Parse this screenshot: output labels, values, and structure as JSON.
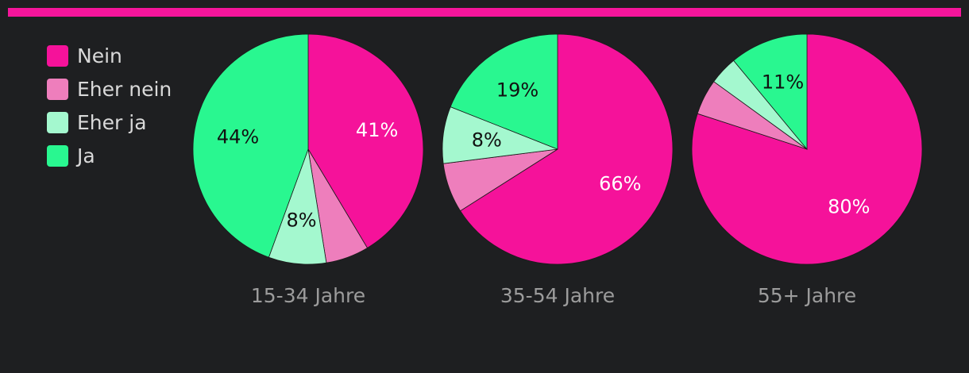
{
  "accent_color": "#f5159b",
  "chart_data": {
    "type": "pie",
    "title": "",
    "categories": [
      "15-34 Jahre",
      "35-54 Jahre",
      "55+ Jahre"
    ],
    "series": [
      {
        "name": "Nein",
        "color": "#f5129a",
        "values": [
          41,
          66,
          80
        ]
      },
      {
        "name": "Eher nein",
        "color": "#ee7ebc",
        "values": [
          6,
          7,
          5
        ]
      },
      {
        "name": "Eher ja",
        "color": "#a4f8cf",
        "values": [
          8,
          8,
          4
        ]
      },
      {
        "name": "Ja",
        "color": "#29f790",
        "values": [
          44,
          19,
          11
        ]
      }
    ],
    "data_labels": [
      [
        {
          "series": 0,
          "text": "41%"
        },
        {
          "series": 2,
          "text": "8%"
        },
        {
          "series": 3,
          "text": "44%"
        }
      ],
      [
        {
          "series": 0,
          "text": "66%"
        },
        {
          "series": 2,
          "text": "8%"
        },
        {
          "series": 3,
          "text": "19%"
        }
      ],
      [
        {
          "series": 0,
          "text": "80%"
        },
        {
          "series": 3,
          "text": "11%"
        }
      ]
    ],
    "legend_position": "top-left",
    "label_colors": {
      "on_dark": "#ffffff",
      "on_light": "#111111"
    }
  }
}
